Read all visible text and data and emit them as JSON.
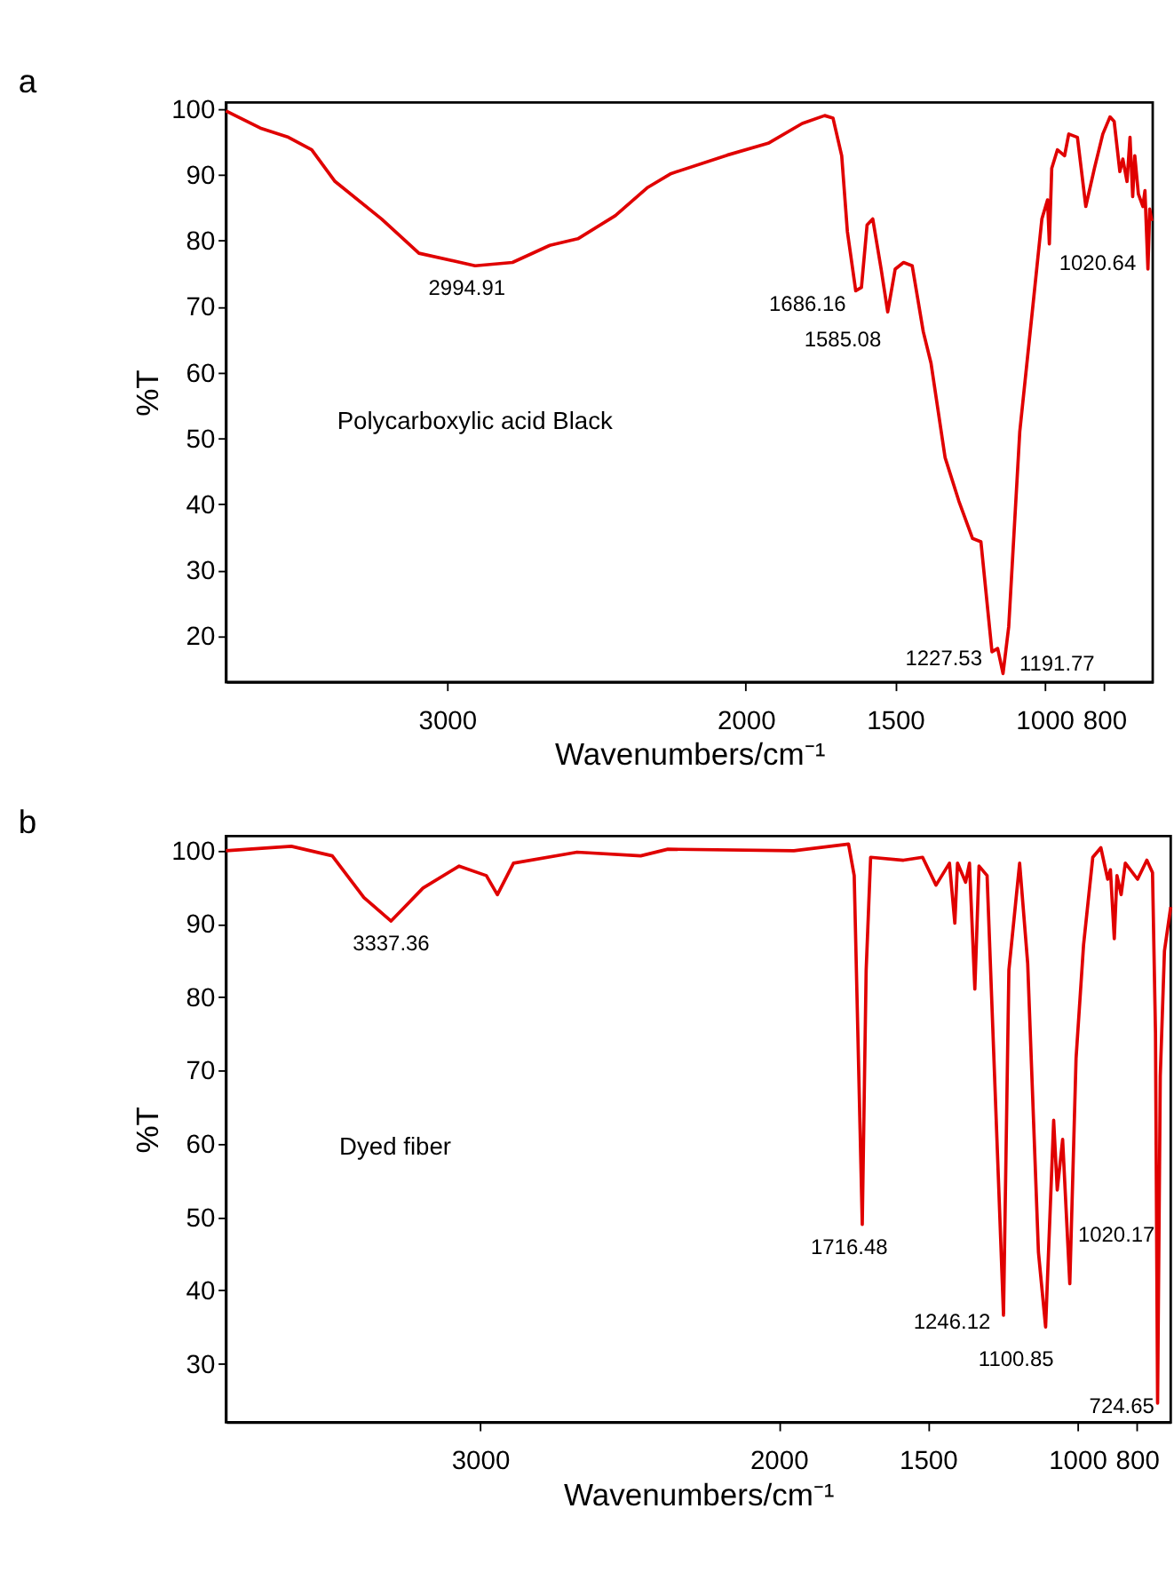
{
  "chart_data": [
    {
      "type": "line",
      "title": "a",
      "xlabel": "Wavenumbers/cm⁻¹",
      "ylabel": "%T",
      "xlim": [
        3740,
        638
      ],
      "xticks": [
        3000,
        2000,
        1500,
        1000,
        800
      ],
      "ylim": [
        13,
        101
      ],
      "yticks": [
        20,
        30,
        40,
        50,
        60,
        70,
        80,
        90,
        100
      ],
      "grid": false,
      "marker": "none",
      "line_style": "solid",
      "series": [
        {
          "color": "#e00000",
          "x": [
            3740,
            3625,
            3531,
            3453,
            3375,
            3219,
            3094,
            2906,
            2781,
            2656,
            2562,
            2437,
            2328,
            2250,
            2062,
            1925,
            1811,
            1736,
            1708,
            1679,
            1660,
            1632,
            1613,
            1594,
            1575,
            1547,
            1525,
            1500,
            1472,
            1443,
            1406,
            1380,
            1333,
            1287,
            1241,
            1213,
            1176,
            1157,
            1139,
            1120,
            1083,
            1037,
            1009,
            990,
            984,
            976,
            957,
            933,
            919,
            890,
            862,
            833,
            805,
            781,
            767,
            748,
            738,
            724,
            714,
            705,
            698,
            686,
            671,
            664,
            654,
            648,
            641
          ],
          "values": [
            99.7,
            97.1,
            95.7,
            93.8,
            89.0,
            83.3,
            78.1,
            76.2,
            76.7,
            79.3,
            80.3,
            83.8,
            88.1,
            90.2,
            93.0,
            94.8,
            97.8,
            99.0,
            98.6,
            92.9,
            81.4,
            72.4,
            72.9,
            82.4,
            83.3,
            75.7,
            69.2,
            75.7,
            76.7,
            76.2,
            66.2,
            61.4,
            47.1,
            40.5,
            34.8,
            34.3,
            17.6,
            18.1,
            14.3,
            21.4,
            51.0,
            71.0,
            83.3,
            86.2,
            79.5,
            91.0,
            93.8,
            92.9,
            96.2,
            95.7,
            85.2,
            91.0,
            96.2,
            98.8,
            98.1,
            90.5,
            92.4,
            89.0,
            95.7,
            86.7,
            92.9,
            87.1,
            85.2,
            87.6,
            75.7,
            84.8,
            83.0
          ]
        }
      ],
      "annotations": [
        {
          "text": "2994.91",
          "x": 2906,
          "y": 76.2
        },
        {
          "text": "1686.16",
          "x": 1632,
          "y": 72.4
        },
        {
          "text": "1585.08",
          "x": 1525,
          "y": 69.2
        },
        {
          "text": "1227.53",
          "x": 1176,
          "y": 17.6
        },
        {
          "text": "1191.77",
          "x": 1139,
          "y": 14.3
        },
        {
          "text": "1020.64",
          "x": 984,
          "y": 79.5
        },
        "Polycarboxylic acid Black"
      ]
    },
    {
      "type": "line",
      "title": "b",
      "xlabel": "Wavenumbers/cm⁻¹",
      "ylabel": "%T",
      "xlim": [
        3851,
        687
      ],
      "xticks": [
        3000,
        2000,
        1500,
        1000,
        800
      ],
      "ylim": [
        22,
        102
      ],
      "yticks": [
        30,
        40,
        50,
        60,
        70,
        80,
        90,
        100
      ],
      "grid": false,
      "marker": "none",
      "line_style": "solid",
      "series": [
        {
          "color": "#e00000",
          "x": [
            3851,
            3632,
            3495,
            3389,
            3298,
            3191,
            3070,
            2979,
            2942,
            2888,
            2675,
            2462,
            2371,
            1949,
            1766,
            1747,
            1720,
            1707,
            1692,
            1582,
            1518,
            1473,
            1428,
            1410,
            1401,
            1374,
            1361,
            1343,
            1329,
            1302,
            1247,
            1229,
            1193,
            1166,
            1130,
            1106,
            1079,
            1067,
            1049,
            1025,
            1004,
            979,
            948,
            921,
            898,
            889,
            876,
            867,
            853,
            839,
            798,
            767,
            748,
            738,
            731,
            722,
            708,
            687
          ],
          "values": [
            100,
            100.6,
            99.3,
            93.6,
            90.4,
            94.9,
            97.9,
            96.6,
            94.0,
            98.3,
            99.8,
            99.3,
            100.2,
            100,
            100.9,
            96.6,
            49.0,
            83.7,
            99.1,
            98.7,
            99.1,
            95.3,
            98.3,
            90.1,
            98.3,
            95.7,
            98.3,
            81.1,
            97.9,
            96.6,
            36.6,
            83.7,
            98.3,
            84.6,
            45.2,
            35.0,
            63.2,
            53.7,
            60.6,
            40.9,
            71.7,
            87.1,
            99.1,
            100.4,
            96.1,
            97.4,
            88.0,
            96.6,
            94.0,
            98.3,
            96.1,
            98.7,
            97.0,
            75.1,
            24.6,
            69.2,
            86.3,
            92.3
          ]
        }
      ],
      "annotations": [
        {
          "text": "3337.36",
          "x": 3298,
          "y": 90.4
        },
        {
          "text": "1716.48",
          "x": 1720,
          "y": 49.0
        },
        {
          "text": "1246.12",
          "x": 1247,
          "y": 36.6
        },
        {
          "text": "1100.85",
          "x": 1106,
          "y": 35.0
        },
        {
          "text": "1020.17",
          "x": 1025,
          "y": 40.9
        },
        {
          "text": "724.65",
          "x": 731,
          "y": 24.6
        },
        "Dyed fiber"
      ]
    }
  ]
}
